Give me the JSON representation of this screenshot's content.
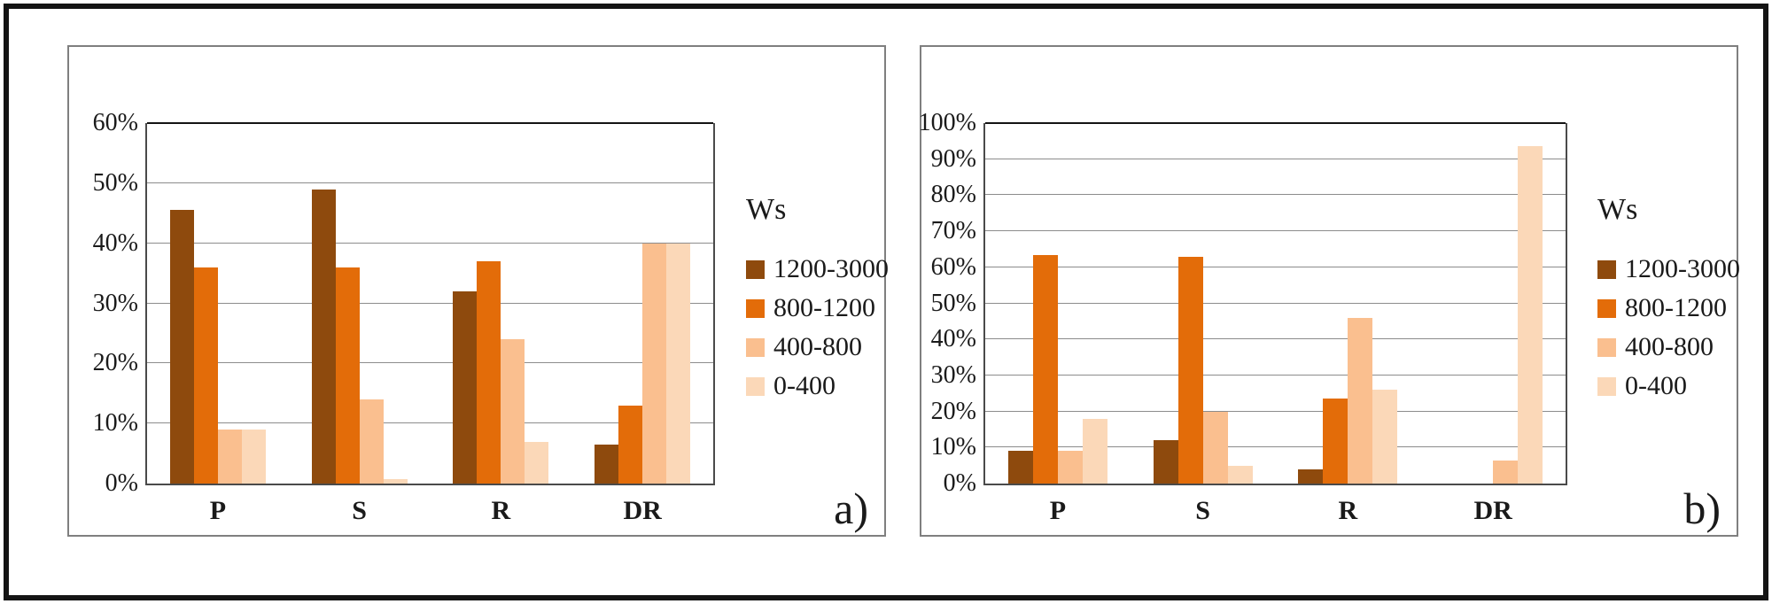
{
  "chart_data": [
    {
      "type": "bar",
      "panel_label": "a)",
      "legend_title": "Ws",
      "categories": [
        "P",
        "S",
        "R",
        "DR"
      ],
      "series": [
        {
          "name": "1200-3000",
          "color": "#8E4A0D",
          "values": [
            45.5,
            49,
            32,
            6.5
          ]
        },
        {
          "name": "800-1200",
          "color": "#E36C09",
          "values": [
            36,
            36,
            37,
            13
          ]
        },
        {
          "name": "400-800",
          "color": "#FABF8F",
          "values": [
            9,
            14,
            24,
            40
          ]
        },
        {
          "name": "0-400",
          "color": "#FBD8B8",
          "values": [
            9,
            0.7,
            7,
            40
          ]
        }
      ],
      "ylabel": "",
      "xlabel": "",
      "ylim": [
        0,
        60
      ],
      "ytick_step": 10,
      "ytick_format": "percent",
      "grid": "horizontal",
      "legend_position": "right"
    },
    {
      "type": "bar",
      "panel_label": "b)",
      "legend_title": "Ws",
      "categories": [
        "P",
        "S",
        "R",
        "DR"
      ],
      "series": [
        {
          "name": "1200-3000",
          "color": "#8E4A0D",
          "values": [
            9,
            12,
            4,
            0
          ]
        },
        {
          "name": "800-1200",
          "color": "#E36C09",
          "values": [
            63.5,
            63,
            23.5,
            0
          ]
        },
        {
          "name": "400-800",
          "color": "#FABF8F",
          "values": [
            9,
            20,
            46,
            6.5
          ]
        },
        {
          "name": "0-400",
          "color": "#FBD8B8",
          "values": [
            18,
            5,
            26,
            93.5
          ]
        }
      ],
      "ylabel": "",
      "xlabel": "",
      "ylim": [
        0,
        100
      ],
      "ytick_step": 10,
      "ytick_format": "percent",
      "grid": "horizontal",
      "legend_position": "right"
    }
  ]
}
